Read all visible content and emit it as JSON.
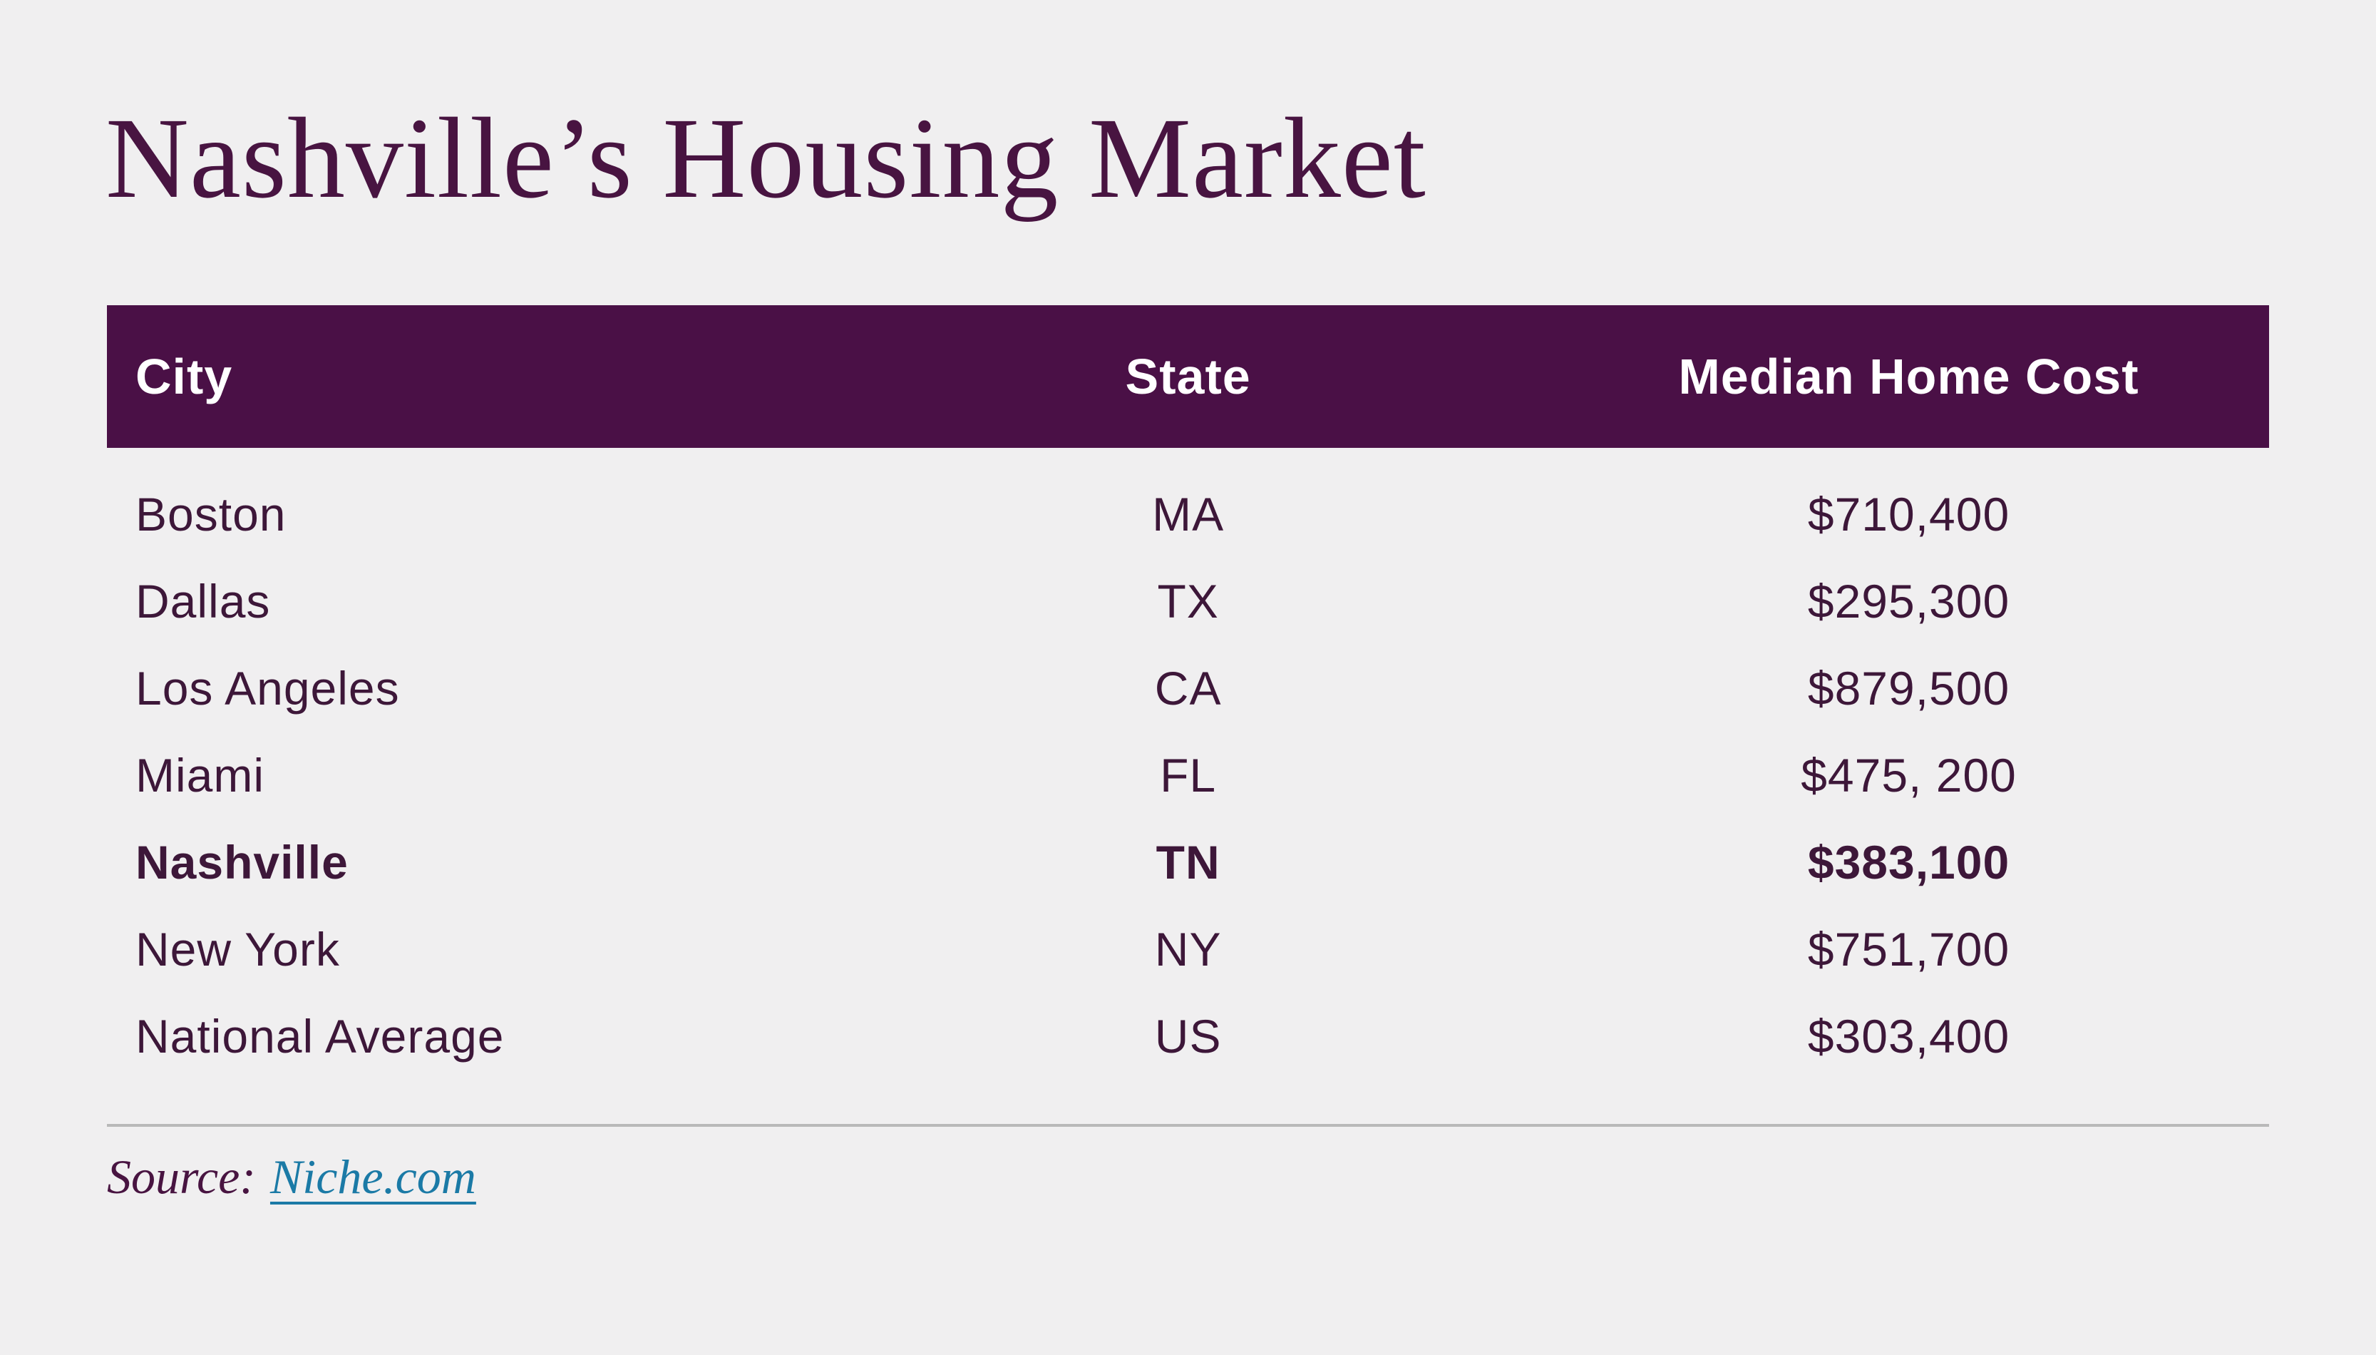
{
  "title": "Nashville’s Housing Market",
  "table": {
    "columns": {
      "city": "City",
      "state": "State",
      "cost": "Median Home Cost"
    },
    "rows": [
      {
        "city": "Boston",
        "state": "MA",
        "cost": "$710,400",
        "highlight": false
      },
      {
        "city": "Dallas",
        "state": "TX",
        "cost": "$295,300",
        "highlight": false
      },
      {
        "city": "Los Angeles",
        "state": "CA",
        "cost": "$879,500",
        "highlight": false
      },
      {
        "city": "Miami",
        "state": "FL",
        "cost": "$475, 200",
        "highlight": false
      },
      {
        "city": "Nashville",
        "state": "TN",
        "cost": "$383,100",
        "highlight": true
      },
      {
        "city": "New York",
        "state": "NY",
        "cost": "$751,700",
        "highlight": false
      },
      {
        "city": "National Average",
        "state": "US",
        "cost": "$303,400",
        "highlight": false
      }
    ]
  },
  "source": {
    "label": "Source:",
    "link_text": "Niche.com"
  },
  "colors": {
    "background": "#f0eff0",
    "brand-purple": "#4a1046",
    "title-purple": "#481441",
    "row-text": "#3d1739",
    "header-text": "#ffffff",
    "link-teal": "#1b7aa6",
    "divider-gray": "#b9b9b9"
  },
  "chart_data": {
    "type": "table",
    "title": "Nashville’s Housing Market",
    "columns": [
      "City",
      "State",
      "Median Home Cost"
    ],
    "rows": [
      [
        "Boston",
        "MA",
        "$710,400"
      ],
      [
        "Dallas",
        "TX",
        "$295,300"
      ],
      [
        "Los Angeles",
        "CA",
        "$879,500"
      ],
      [
        "Miami",
        "FL",
        "$475, 200"
      ],
      [
        "Nashville",
        "TN",
        "$383,100"
      ],
      [
        "New York",
        "NY",
        "$751,700"
      ],
      [
        "National Average",
        "US",
        "$303,400"
      ]
    ],
    "median_home_cost_values": [
      710400,
      295300,
      879500,
      475200,
      383100,
      751700,
      303400
    ],
    "highlighted_row": "Nashville",
    "source": "Niche.com"
  }
}
